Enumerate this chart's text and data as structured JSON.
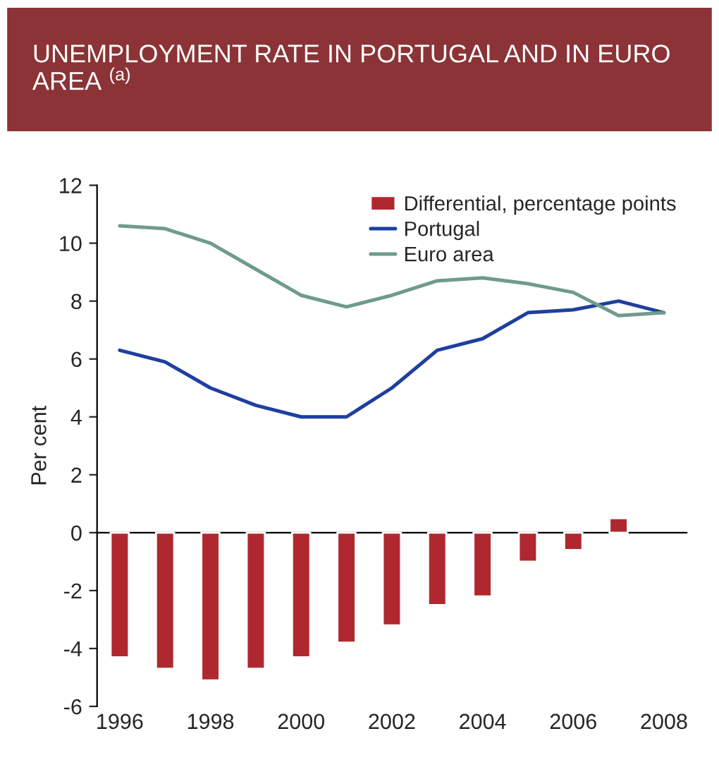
{
  "chart_data": {
    "type": "bar",
    "title": "UNEMPLOYMENT RATE IN PORTUGAL AND IN EURO AREA $^{(a)}$",
    "ylabel": "Per cent",
    "categories": [
      "1996",
      null,
      "1998",
      null,
      "2000",
      null,
      "2002",
      null,
      "2004",
      null,
      "2006",
      null,
      "2008"
    ],
    "series": [
      {
        "name": "Differential, percentage points",
        "color": "#b0282f",
        "values": [
          -4.3,
          -4.7,
          -5.1,
          -4.7,
          -4.3,
          -3.8,
          -3.2,
          -2.5,
          -2.2,
          -1.0,
          -0.6,
          0.5,
          null
        ]
      },
      {
        "name": "Portugal",
        "type": "line",
        "color": "#1f3f9f",
        "values": [
          6.3,
          5.9,
          5.0,
          4.4,
          4.0,
          4.0,
          5.0,
          6.3,
          6.7,
          7.6,
          7.7,
          8.0,
          7.6
        ]
      },
      {
        "name": "Euro area",
        "type": "line",
        "color": "#6f9b8a",
        "values": [
          10.6,
          10.5,
          10.0,
          9.1,
          8.2,
          7.8,
          8.2,
          8.7,
          8.8,
          8.6,
          8.3,
          7.5,
          7.6
        ]
      }
    ],
    "ylim": [
      -6,
      12
    ],
    "yticks": [
      -6,
      -4,
      -2,
      0,
      2,
      4,
      6,
      8,
      10,
      12
    ],
    "legend": "top right"
  }
}
